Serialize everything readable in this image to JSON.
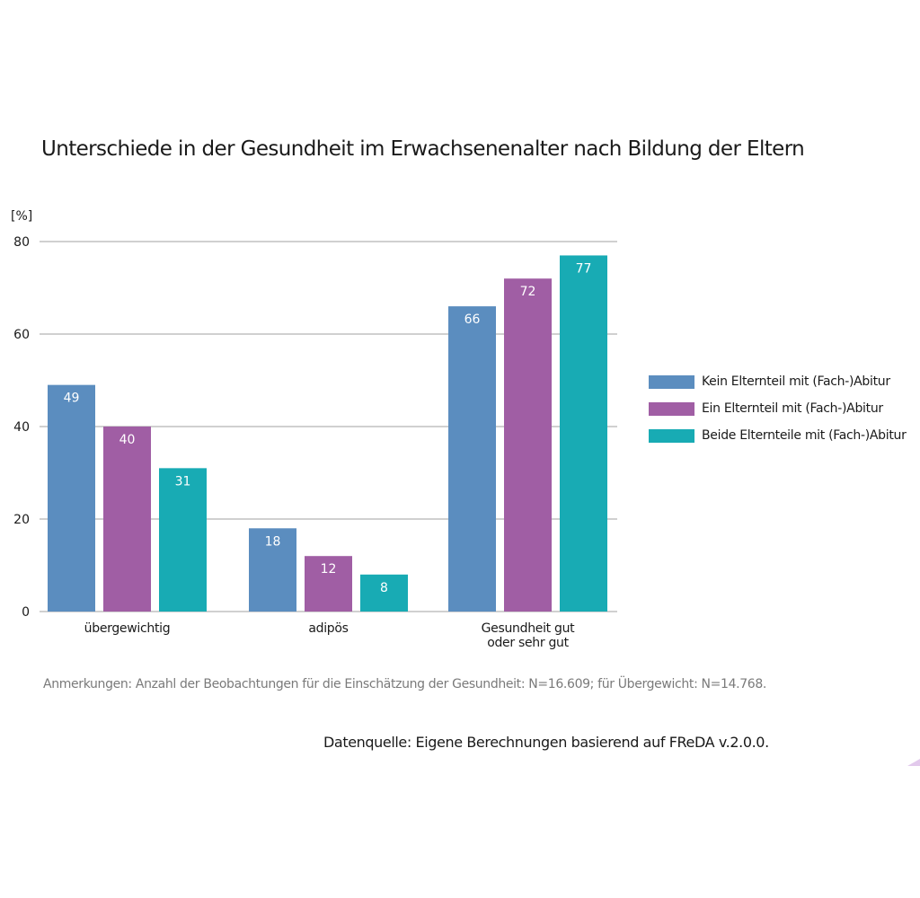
{
  "chart_data": {
    "type": "bar",
    "title": "Unterschiede in der Gesundheit im Erwachsenenalter nach Bildung der Eltern",
    "ylabel": "[%]",
    "xlabel": "",
    "ylim": [
      0,
      80
    ],
    "yticks": [
      0,
      20,
      40,
      60,
      80
    ],
    "grid": true,
    "legend_position": "right",
    "categories": [
      "übergewichtig",
      "adipös",
      "Gesundheit gut oder sehr gut"
    ],
    "category_lines": [
      [
        "übergewichtig"
      ],
      [
        "adipös"
      ],
      [
        "Gesundheit gut",
        "oder sehr gut"
      ]
    ],
    "series": [
      {
        "name": "Kein Elternteil mit (Fach-)Abitur",
        "color": "#5b8dbf",
        "values": [
          49,
          18,
          66
        ]
      },
      {
        "name": "Ein Elternteil mit (Fach-)Abitur",
        "color": "#a05ea4",
        "values": [
          40,
          12,
          72
        ]
      },
      {
        "name": "Beide Elternteile mit (Fach-)Abitur",
        "color": "#18abb4",
        "values": [
          31,
          8,
          77
        ]
      }
    ],
    "data_labels": true
  },
  "notes": {
    "remarks": "Anmerkungen: Anzahl der Beobachtungen für die Einschätzung der Gesundheit: N=16.609; für Übergewicht: N=14.768.",
    "source": "Datenquelle: Eigene Berechnungen basierend auf FReDA v.2.0.0."
  },
  "colors": {
    "gridline": "#a0a0a0",
    "text": "#1a1a1a",
    "note_text": "#7a7a7a"
  }
}
